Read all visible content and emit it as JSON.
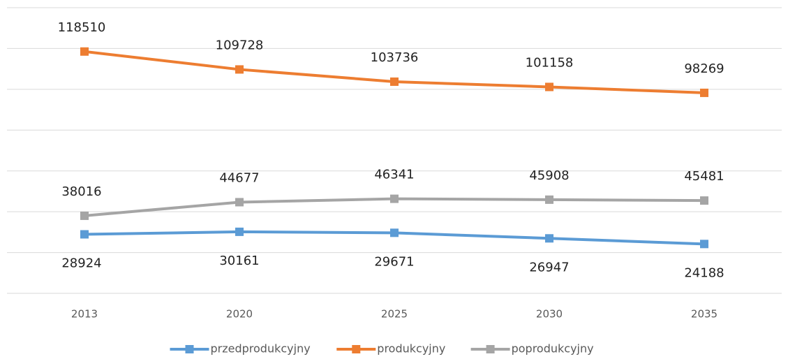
{
  "chart_data": {
    "type": "line",
    "categories": [
      "2013",
      "2020",
      "2025",
      "2030",
      "2035"
    ],
    "series": [
      {
        "name": "przedprodukcyjny",
        "color": "#5b9bd5",
        "values": [
          28924,
          30161,
          29671,
          26947,
          24188
        ]
      },
      {
        "name": "produkcyjny",
        "color": "#ed7d31",
        "values": [
          118510,
          109728,
          103736,
          101158,
          98269
        ]
      },
      {
        "name": "poprodukcyjny",
        "color": "#a5a5a5",
        "values": [
          38016,
          44677,
          46341,
          45908,
          45481
        ]
      }
    ],
    "ylim": [
      0,
      140000
    ],
    "yticks": [
      0,
      20000,
      40000,
      60000,
      80000,
      100000,
      120000,
      140000
    ],
    "grid": true,
    "legend": "bottom"
  }
}
